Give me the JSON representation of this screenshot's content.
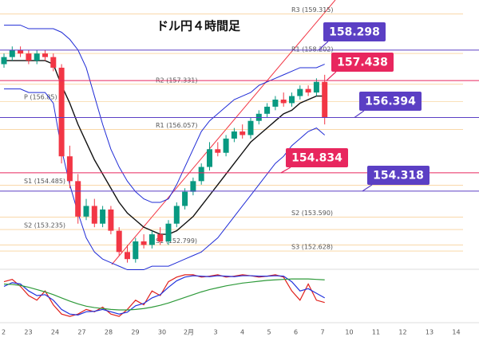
{
  "chart_data": {
    "type": "candlestick",
    "title": "ドル円４時間足",
    "ylim": [
      152.18,
      159.71
    ],
    "open": [
      157.9,
      158.1,
      158.3,
      158.2,
      158.0,
      158.2,
      158.1,
      157.8,
      155.3,
      154.6,
      153.6,
      153.9,
      153.4,
      153.8,
      153.2,
      152.6,
      152.4,
      152.9,
      152.8,
      153.1,
      152.9,
      153.4,
      153.9,
      154.3,
      154.6,
      155.0,
      155.5,
      155.4,
      155.8,
      156.0,
      155.9,
      156.3,
      156.5,
      156.7,
      156.9,
      156.8,
      157.0,
      157.2,
      157.1,
      157.4
    ],
    "high": [
      158.2,
      158.4,
      158.4,
      158.3,
      158.3,
      158.3,
      158.2,
      157.9,
      155.6,
      154.8,
      154.1,
      154.1,
      153.9,
      153.9,
      153.3,
      152.8,
      153.0,
      153.1,
      153.2,
      153.3,
      153.5,
      154.0,
      154.4,
      154.7,
      155.1,
      155.7,
      155.7,
      155.9,
      156.1,
      156.2,
      156.4,
      156.6,
      156.8,
      157.0,
      157.1,
      157.1,
      157.3,
      157.3,
      157.5,
      157.6
    ],
    "low": [
      157.8,
      158.0,
      158.1,
      157.9,
      157.9,
      158.0,
      157.7,
      155.1,
      154.4,
      153.4,
      153.5,
      153.3,
      153.3,
      153.1,
      152.5,
      152.3,
      152.3,
      152.7,
      152.7,
      152.8,
      152.8,
      153.3,
      153.8,
      154.2,
      154.5,
      154.9,
      155.3,
      155.3,
      155.7,
      155.8,
      155.8,
      156.2,
      156.4,
      156.6,
      156.7,
      156.7,
      156.9,
      157.0,
      157.0,
      156.2
    ],
    "close": [
      158.1,
      158.3,
      158.2,
      158.0,
      158.2,
      158.1,
      157.8,
      155.3,
      154.6,
      153.6,
      153.9,
      153.4,
      153.8,
      153.2,
      152.6,
      152.4,
      152.9,
      152.8,
      153.1,
      152.9,
      153.4,
      153.9,
      154.3,
      154.6,
      155.0,
      155.5,
      155.4,
      155.8,
      156.0,
      155.9,
      156.3,
      156.5,
      156.7,
      156.9,
      156.8,
      157.0,
      157.2,
      157.1,
      157.4,
      156.4
    ],
    "up_color": "#089981",
    "down_color": "#f23645",
    "series": [
      {
        "color": "#1f2bd6",
        "values": [
          159.0,
          159.0,
          159.0,
          158.9,
          158.9,
          158.9,
          158.9,
          158.8,
          158.6,
          158.3,
          157.8,
          157.0,
          156.2,
          155.5,
          155.0,
          154.6,
          154.3,
          154.1,
          154.0,
          154.0,
          154.1,
          154.5,
          155.0,
          155.5,
          156.0,
          156.3,
          156.5,
          156.7,
          156.9,
          157.0,
          157.1,
          157.3,
          157.4,
          157.5,
          157.6,
          157.7,
          157.8,
          157.8,
          157.8,
          157.9
        ]
      },
      {
        "color": "#111111",
        "values": [
          158.0,
          158.0,
          158.0,
          158.0,
          158.0,
          158.0,
          157.9,
          157.3,
          156.8,
          156.2,
          155.7,
          155.2,
          154.8,
          154.4,
          154.0,
          153.7,
          153.5,
          153.3,
          153.2,
          153.1,
          153.1,
          153.2,
          153.4,
          153.6,
          153.9,
          154.2,
          154.5,
          154.8,
          155.1,
          155.4,
          155.7,
          155.9,
          156.1,
          156.3,
          156.5,
          156.6,
          156.8,
          156.9,
          157.0,
          157.0
        ]
      },
      {
        "color": "#1f2bd6",
        "values": [
          157.2,
          157.2,
          157.2,
          157.1,
          157.1,
          157.1,
          156.8,
          155.5,
          154.5,
          153.7,
          153.0,
          152.6,
          152.4,
          152.3,
          152.2,
          152.1,
          152.1,
          152.1,
          152.2,
          152.2,
          152.2,
          152.3,
          152.4,
          152.5,
          152.6,
          152.8,
          153.0,
          153.3,
          153.6,
          153.9,
          154.2,
          154.5,
          154.8,
          155.1,
          155.3,
          155.6,
          155.8,
          156.0,
          156.1,
          155.9
        ]
      }
    ],
    "oscillator": {
      "ylim": [
        0,
        100
      ],
      "series": [
        {
          "color": "#e0201b",
          "values": [
            80,
            85,
            70,
            50,
            40,
            60,
            30,
            10,
            5,
            10,
            20,
            15,
            25,
            10,
            5,
            20,
            40,
            30,
            60,
            50,
            80,
            90,
            95,
            95,
            90,
            92,
            95,
            90,
            92,
            95,
            93,
            90,
            92,
            95,
            90,
            60,
            40,
            75,
            40,
            35
          ]
        },
        {
          "color": "#2233dd",
          "values": [
            70,
            78,
            75,
            60,
            50,
            52,
            40,
            20,
            10,
            8,
            15,
            16,
            20,
            15,
            10,
            14,
            28,
            33,
            45,
            52,
            68,
            82,
            90,
            93,
            92,
            91,
            93,
            92,
            91,
            93,
            93,
            92,
            92,
            93,
            92,
            80,
            60,
            65,
            55,
            45
          ]
        },
        {
          "color": "#2e9a3a",
          "values": [
            75,
            74,
            72,
            68,
            63,
            58,
            52,
            45,
            38,
            32,
            27,
            24,
            22,
            20,
            19,
            19,
            20,
            22,
            25,
            29,
            34,
            40,
            46,
            52,
            58,
            63,
            67,
            71,
            74,
            77,
            79,
            81,
            83,
            84,
            85,
            86,
            86,
            86,
            85,
            84
          ]
        }
      ]
    },
    "levels": [
      {
        "value": 158.298,
        "color": "#5b3fc4"
      },
      {
        "value": 157.438,
        "color": "#e8265e"
      },
      {
        "value": 156.394,
        "color": "#5b3fc4"
      },
      {
        "value": 154.834,
        "color": "#e8265e"
      },
      {
        "value": 154.318,
        "color": "#5b3fc4"
      }
    ],
    "pivots": [
      {
        "value": 159.315,
        "label": "R3 (159.315)"
      },
      {
        "value": 158.202,
        "label": "R1 (158.202)"
      },
      {
        "value": 157.331,
        "label": "R2 (157.331)"
      },
      {
        "value": 156.85,
        "label": "P (156.85)"
      },
      {
        "value": 156.057,
        "label": "R1 (156.057)"
      },
      {
        "value": 154.485,
        "label": "S1 (154.485)"
      },
      {
        "value": 153.59,
        "label": "S2 (153.590)"
      },
      {
        "value": 153.235,
        "label": "S2 (153.235)"
      },
      {
        "value": 152.799,
        "label": "S1 (152.799)"
      },
      {
        "value": 152.628,
        "label": "S3 (152.628)"
      }
    ],
    "x_labels": [
      "2",
      "23",
      "24",
      "27",
      "28",
      "29",
      "30",
      "2月",
      "3",
      "4",
      "5",
      "6",
      "7",
      "10",
      "11",
      "12",
      "13",
      "14"
    ]
  }
}
